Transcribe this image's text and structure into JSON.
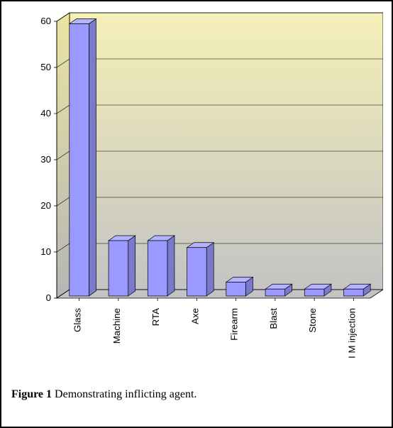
{
  "chart": {
    "type": "bar-3d",
    "categories": [
      "Glass",
      "Machine",
      "RTA",
      "Axe",
      "Firearm",
      "Blast",
      "Stone",
      "I M injection"
    ],
    "values": [
      59,
      12,
      12,
      10.5,
      3,
      1.5,
      1.5,
      1.5
    ],
    "ylim": [
      0,
      60
    ],
    "yticks": [
      0,
      10,
      20,
      30,
      40,
      50,
      60
    ],
    "bar_face_color": "#9999ff",
    "bar_side_color": "#7a7acc",
    "bar_top_color": "#b3b3ff",
    "back_wall_top_color": "#f5f0b7",
    "back_wall_bottom_color": "#c3c3c3",
    "side_wall_top_color": "#ebe5a0",
    "side_wall_bottom_color": "#b5b5b5",
    "floor_color": "#c3c3c3",
    "gridline_color": "#000000",
    "axis_font_size_pt": 10,
    "cat_font_size_pt": 10,
    "text_color": "#000000"
  },
  "caption": {
    "label": "Figure 1",
    "text": " Demonstrating inflicting agent."
  }
}
